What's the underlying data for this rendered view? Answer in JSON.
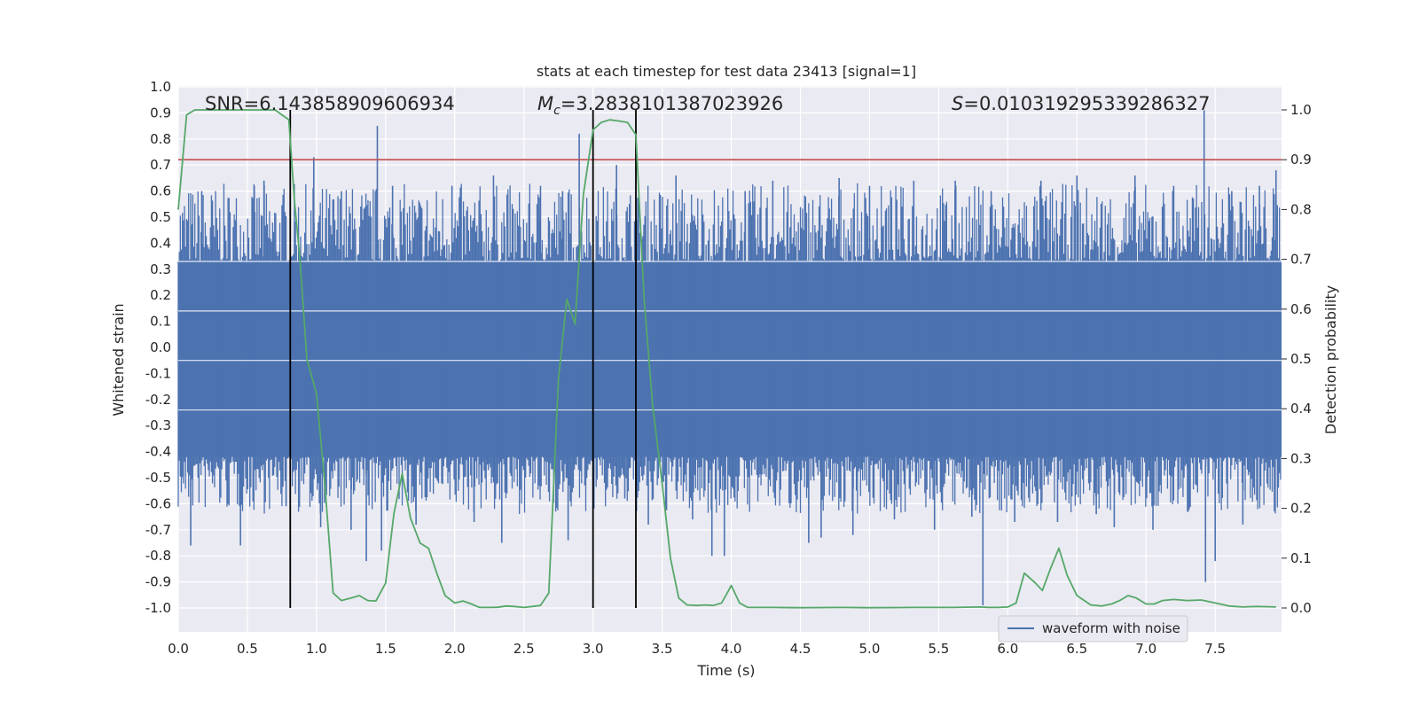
{
  "chart_data": {
    "type": "line",
    "title": "stats at each timestep for test data 23413 [signal=1]",
    "xlabel": "Time (s)",
    "ylabel_left": "Whitened strain",
    "ylabel_right": "Detection probability",
    "xlim": [
      0,
      7.98
    ],
    "ylim_left": [
      -1.0,
      1.0
    ],
    "ylim_right": [
      0.0,
      1.0
    ],
    "grid": true,
    "x_ticks": [
      "0.0",
      "0.5",
      "1.0",
      "1.5",
      "2.0",
      "2.5",
      "3.0",
      "3.5",
      "4.0",
      "4.5",
      "5.0",
      "5.5",
      "6.0",
      "6.5",
      "7.0",
      "7.5"
    ],
    "y_left_ticks": [
      "1.0",
      "0.9",
      "0.8",
      "0.7",
      "0.6",
      "0.5",
      "0.4",
      "0.3",
      "0.2",
      "0.1",
      "0.0",
      "-0.1",
      "-0.2",
      "-0.3",
      "-0.4",
      "-0.5",
      "-0.6",
      "-0.7",
      "-0.8",
      "-0.9",
      "-1.0"
    ],
    "y_right_ticks": [
      "1.0",
      "0.9",
      "0.8",
      "0.7",
      "0.6",
      "0.5",
      "0.4",
      "0.3",
      "0.2",
      "0.1",
      "0.0"
    ],
    "annotations": {
      "snr": "SNR=6.143858909606934",
      "mc_sym": "M",
      "mc_sub": "c",
      "mc_val": "=3.2838101387023926",
      "s_sym": "S",
      "s_val": "=0.010319295339286327"
    },
    "threshold": {
      "value": 0.9,
      "axis": "right",
      "color": "#c44e52"
    },
    "vlines_x": [
      0.81,
      3.0,
      3.31
    ],
    "waveform": {
      "name": "waveform with noise",
      "color": "#4c72b0",
      "band_lo": -0.42,
      "band_hi": 0.33,
      "spikes": [
        [
          0.09,
          -0.76
        ],
        [
          0.17,
          0.6
        ],
        [
          0.45,
          -0.76
        ],
        [
          0.55,
          0.62
        ],
        [
          0.62,
          0.64
        ],
        [
          0.78,
          -0.61
        ],
        [
          0.98,
          0.73
        ],
        [
          1.03,
          -0.69
        ],
        [
          1.18,
          0.6
        ],
        [
          1.25,
          -0.7
        ],
        [
          1.36,
          -0.82
        ],
        [
          1.44,
          0.85
        ],
        [
          1.47,
          -0.78
        ],
        [
          1.55,
          0.62
        ],
        [
          1.72,
          -0.68
        ],
        [
          1.98,
          0.62
        ],
        [
          2.14,
          -0.67
        ],
        [
          2.28,
          0.66
        ],
        [
          2.34,
          -0.75
        ],
        [
          2.62,
          0.62
        ],
        [
          2.78,
          0.6
        ],
        [
          2.82,
          -0.74
        ],
        [
          2.9,
          0.82
        ],
        [
          3.17,
          0.7
        ],
        [
          3.23,
          -0.58
        ],
        [
          3.4,
          -0.68
        ],
        [
          3.6,
          0.66
        ],
        [
          3.72,
          -0.66
        ],
        [
          3.86,
          -0.8
        ],
        [
          3.95,
          -0.8
        ],
        [
          4.1,
          0.6
        ],
        [
          4.3,
          0.64
        ],
        [
          4.56,
          -0.75
        ],
        [
          4.65,
          -0.73
        ],
        [
          4.78,
          0.65
        ],
        [
          4.88,
          -0.72
        ],
        [
          5.0,
          0.62
        ],
        [
          5.18,
          -0.66
        ],
        [
          5.32,
          0.64
        ],
        [
          5.47,
          -0.7
        ],
        [
          5.62,
          0.64
        ],
        [
          5.74,
          -0.65
        ],
        [
          5.82,
          -0.99
        ],
        [
          5.88,
          0.6
        ],
        [
          6.05,
          -0.67
        ],
        [
          6.24,
          0.64
        ],
        [
          6.36,
          -0.67
        ],
        [
          6.5,
          0.66
        ],
        [
          6.64,
          -0.64
        ],
        [
          6.77,
          -0.69
        ],
        [
          6.92,
          0.66
        ],
        [
          7.05,
          -0.7
        ],
        [
          7.2,
          0.62
        ],
        [
          7.3,
          -0.63
        ],
        [
          7.42,
          0.91
        ],
        [
          7.43,
          -0.9
        ],
        [
          7.5,
          -0.82
        ],
        [
          7.62,
          0.6
        ],
        [
          7.7,
          -0.68
        ],
        [
          7.82,
          0.62
        ],
        [
          7.94,
          0.68
        ]
      ]
    },
    "probability": {
      "name": "detection probability",
      "color": "#55a868",
      "x": [
        0.0,
        0.06,
        0.12,
        0.2,
        0.3,
        0.4,
        0.5,
        0.6,
        0.7,
        0.75,
        0.8,
        0.84,
        0.88,
        0.93,
        1.0,
        1.06,
        1.12,
        1.18,
        1.25,
        1.31,
        1.37,
        1.43,
        1.5,
        1.56,
        1.62,
        1.68,
        1.75,
        1.81,
        1.87,
        1.93,
        2.0,
        2.06,
        2.12,
        2.18,
        2.25,
        2.31,
        2.37,
        2.43,
        2.5,
        2.56,
        2.62,
        2.68,
        2.75,
        2.81,
        2.87,
        2.93,
        3.0,
        3.06,
        3.12,
        3.18,
        3.25,
        3.31,
        3.37,
        3.43,
        3.5,
        3.56,
        3.62,
        3.68,
        3.75,
        3.81,
        3.87,
        3.93,
        4.0,
        4.06,
        4.12,
        4.3,
        4.5,
        4.8,
        5.0,
        5.3,
        5.6,
        5.8,
        5.86,
        5.93,
        6.0,
        6.06,
        6.12,
        6.2,
        6.25,
        6.31,
        6.37,
        6.43,
        6.5,
        6.6,
        6.68,
        6.75,
        6.81,
        6.87,
        6.93,
        7.0,
        7.06,
        7.12,
        7.2,
        7.3,
        7.4,
        7.5,
        7.6,
        7.7,
        7.8,
        7.94
      ],
      "y": [
        0.8,
        0.99,
        1.0,
        1.0,
        1.0,
        1.0,
        1.0,
        1.0,
        1.0,
        0.99,
        0.98,
        0.82,
        0.7,
        0.5,
        0.43,
        0.25,
        0.03,
        0.015,
        0.02,
        0.025,
        0.015,
        0.014,
        0.05,
        0.19,
        0.27,
        0.18,
        0.13,
        0.12,
        0.07,
        0.025,
        0.01,
        0.014,
        0.008,
        0.001,
        0.001,
        0.0015,
        0.004,
        0.003,
        0.001,
        0.003,
        0.005,
        0.03,
        0.46,
        0.62,
        0.57,
        0.83,
        0.96,
        0.975,
        0.98,
        0.978,
        0.975,
        0.95,
        0.62,
        0.41,
        0.25,
        0.1,
        0.02,
        0.006,
        0.005,
        0.006,
        0.005,
        0.01,
        0.045,
        0.01,
        0.001,
        0.001,
        0.0005,
        0.001,
        0.0005,
        0.001,
        0.001,
        0.002,
        0.001,
        0.001,
        0.002,
        0.01,
        0.07,
        0.05,
        0.035,
        0.08,
        0.12,
        0.065,
        0.025,
        0.006,
        0.004,
        0.008,
        0.015,
        0.025,
        0.02,
        0.008,
        0.008,
        0.015,
        0.017,
        0.015,
        0.016,
        0.01,
        0.004,
        0.002,
        0.003,
        0.002
      ]
    },
    "legend": {
      "label": "waveform with noise",
      "placement": "bottom-center"
    }
  }
}
